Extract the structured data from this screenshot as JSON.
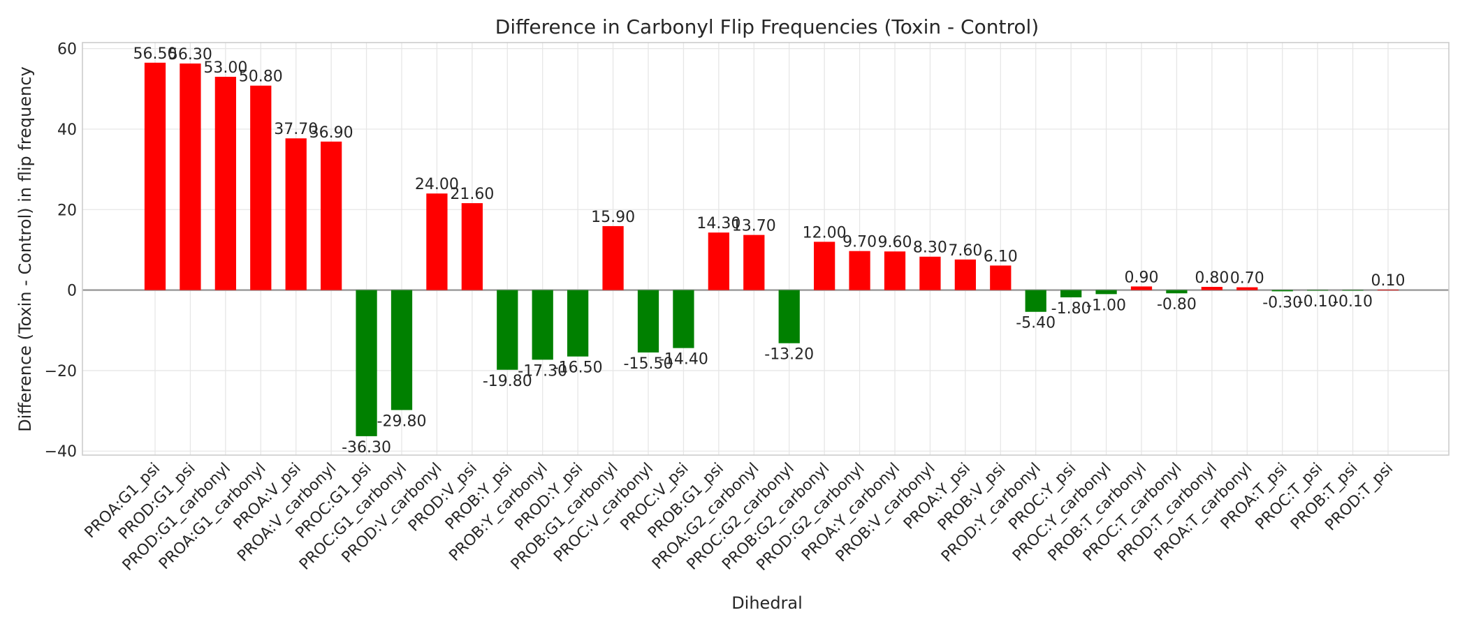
{
  "chart_data": {
    "type": "bar",
    "title": "Difference in Carbonyl Flip Frequencies (Toxin - Control)",
    "xlabel": "Dihedral",
    "ylabel": "Difference (Toxin - Control) in flip frequency",
    "ylim": [
      -41,
      61.5
    ],
    "yticks": [
      -40,
      -20,
      0,
      20,
      40,
      60
    ],
    "ytick_labels": [
      "−40",
      "−20",
      "0",
      "20",
      "40",
      "60"
    ],
    "grid": true,
    "positive_color": "#ff0000",
    "negative_color": "#008000",
    "categories": [
      "PROA:G1_psi",
      "PROD:G1_psi",
      "PROD:G1_carbonyl",
      "PROA:G1_carbonyl",
      "PROA:V_psi",
      "PROA:V_carbonyl",
      "PROC:G1_psi",
      "PROC:G1_carbonyl",
      "PROD:V_carbonyl",
      "PROD:V_psi",
      "PROB:Y_psi",
      "PROB:Y_carbonyl",
      "PROD:Y_psi",
      "PROB:G1_carbonyl",
      "PROC:V_carbonyl",
      "PROC:V_psi",
      "PROB:G1_psi",
      "PROA:G2_carbonyl",
      "PROC:G2_carbonyl",
      "PROB:G2_carbonyl",
      "PROD:G2_carbonyl",
      "PROA:Y_carbonyl",
      "PROB:V_carbonyl",
      "PROA:Y_psi",
      "PROB:V_psi",
      "PROD:Y_carbonyl",
      "PROC:Y_psi",
      "PROC:Y_carbonyl",
      "PROB:T_carbonyl",
      "PROC:T_carbonyl",
      "PROD:T_carbonyl",
      "PROA:T_carbonyl",
      "PROA:T_psi",
      "PROC:T_psi",
      "PROB:T_psi",
      "PROD:T_psi"
    ],
    "values": [
      56.5,
      56.3,
      53.0,
      50.8,
      37.7,
      36.9,
      -36.3,
      -29.8,
      24.0,
      21.6,
      -19.8,
      -17.3,
      -16.5,
      15.9,
      -15.5,
      -14.4,
      14.3,
      13.7,
      -13.2,
      12.0,
      9.7,
      9.6,
      8.3,
      7.6,
      6.1,
      -5.4,
      -1.8,
      -1.0,
      0.9,
      -0.8,
      0.8,
      0.7,
      -0.3,
      -0.1,
      -0.1,
      0.1
    ],
    "data_labels": [
      "56.50",
      "56.30",
      "53.00",
      "50.80",
      "37.70",
      "36.90",
      "-36.30",
      "-29.80",
      "24.00",
      "21.60",
      "-19.80",
      "-17.30",
      "-16.50",
      "15.90",
      "-15.50",
      "-14.40",
      "14.30",
      "13.70",
      "-13.20",
      "12.00",
      "9.70",
      "9.60",
      "8.30",
      "7.60",
      "6.10",
      "-5.40",
      "-1.80",
      "-1.00",
      "0.90",
      "-0.80",
      "0.80",
      "0.70",
      "-0.30",
      "-0.10",
      "-0.10",
      "0.10"
    ]
  }
}
